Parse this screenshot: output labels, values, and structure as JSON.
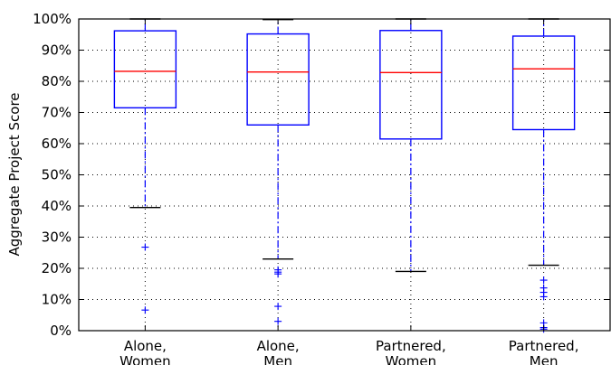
{
  "chart_data": {
    "type": "box",
    "title": "",
    "xlabel": "",
    "ylabel": "Aggregate Project Score",
    "ylim": [
      0,
      100
    ],
    "yticks": [
      0,
      10,
      20,
      30,
      40,
      50,
      60,
      70,
      80,
      90,
      100
    ],
    "ytick_labels": [
      "0%",
      "10%",
      "20%",
      "30%",
      "40%",
      "50%",
      "60%",
      "70%",
      "80%",
      "90%",
      "100%"
    ],
    "grid": "dotted",
    "colors": {
      "box": "#0000ff",
      "median": "#ff0000",
      "cap": "#000000",
      "flier": "#0000ff",
      "grid": "#000000"
    },
    "categories": [
      [
        "Alone,",
        "Women"
      ],
      [
        "Alone,",
        "Men"
      ],
      [
        "Partnered,",
        "Women"
      ],
      [
        "Partnered,",
        "Men"
      ]
    ],
    "boxes": [
      {
        "whislo": 39.5,
        "q1": 71.5,
        "med": 83.2,
        "q3": 96.2,
        "whishi": 100,
        "fliers": [
          26.8,
          6.6
        ]
      },
      {
        "whislo": 23.0,
        "q1": 66.0,
        "med": 83.0,
        "q3": 95.2,
        "whishi": 99.8,
        "fliers": [
          19.5,
          18.8,
          18.2,
          7.8,
          3.0
        ]
      },
      {
        "whislo": 19.0,
        "q1": 61.5,
        "med": 82.8,
        "q3": 96.3,
        "whishi": 100,
        "fliers": []
      },
      {
        "whislo": 21.0,
        "q1": 64.5,
        "med": 84.0,
        "q3": 94.5,
        "whishi": 100,
        "fliers": [
          16.2,
          13.7,
          12.3,
          10.9,
          2.5,
          1.0,
          0.5
        ]
      }
    ]
  }
}
